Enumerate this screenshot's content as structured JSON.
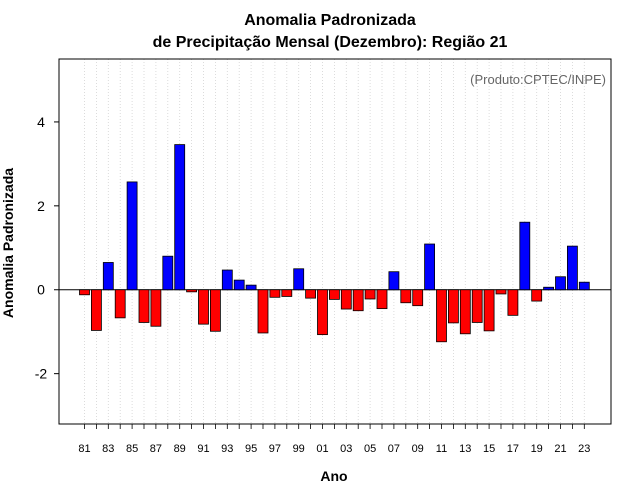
{
  "chart_data": {
    "type": "bar",
    "title_line1": "Anomalia Padronizada",
    "title_line2": "de Precipitação Mensal (Dezembro): Região 21",
    "xlabel": "Ano",
    "ylabel": "Anomalia Padronizada",
    "annotation": "(Produto:CPTEC/INPE)",
    "ylim": [
      -3.2,
      5.5
    ],
    "yticks": [
      -2,
      0,
      2,
      4
    ],
    "grid": "vertical dotted",
    "categories": [
      "81",
      "82",
      "83",
      "84",
      "85",
      "86",
      "87",
      "88",
      "89",
      "90",
      "91",
      "92",
      "93",
      "94",
      "95",
      "96",
      "97",
      "98",
      "99",
      "00",
      "01",
      "02",
      "03",
      "04",
      "05",
      "06",
      "07",
      "08",
      "09",
      "10",
      "11",
      "12",
      "13",
      "14",
      "15",
      "16",
      "17",
      "18",
      "19",
      "20",
      "21",
      "22",
      "23"
    ],
    "xtick_labels": [
      "81",
      "83",
      "85",
      "87",
      "89",
      "91",
      "93",
      "95",
      "97",
      "99",
      "01",
      "03",
      "05",
      "07",
      "09",
      "11",
      "13",
      "15",
      "17",
      "19",
      "21",
      "23"
    ],
    "values": [
      -0.12,
      -0.97,
      0.65,
      -0.67,
      2.57,
      -0.78,
      -0.87,
      0.8,
      3.46,
      -0.05,
      -0.82,
      -0.99,
      0.47,
      0.23,
      0.11,
      -1.03,
      -0.18,
      -0.16,
      0.5,
      -0.2,
      -1.07,
      -0.23,
      -0.46,
      -0.5,
      -0.22,
      -0.45,
      0.43,
      -0.31,
      -0.38,
      1.09,
      -1.24,
      -0.79,
      -1.05,
      -0.78,
      -0.98,
      -0.1,
      -0.61,
      1.61,
      -0.27,
      0.06,
      0.31,
      1.04,
      0.18
    ],
    "positive_color": "#0000ff",
    "negative_color": "#ff0000",
    "bar_edge_color": "#000000"
  }
}
